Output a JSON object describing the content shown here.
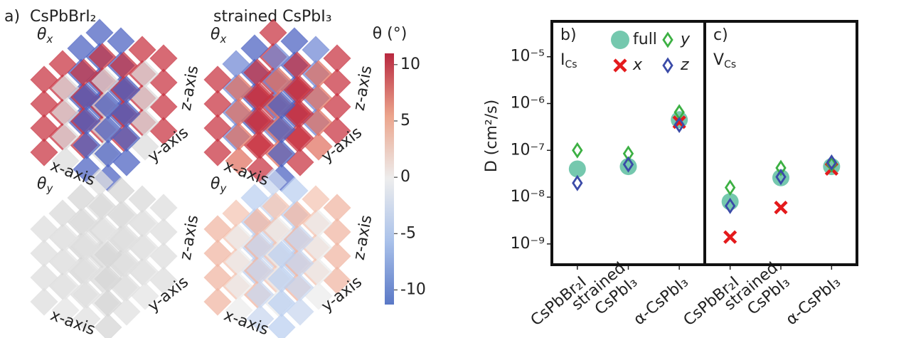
{
  "panel_a": {
    "panel_label": "a)",
    "columns": [
      "CsPbBrI₂",
      "strained CsPbI₃"
    ],
    "rows": [
      {
        "symbol": "θ",
        "sub": "x"
      },
      {
        "symbol": "θ",
        "sub": "y"
      }
    ],
    "axis_labels": [
      "x-axis",
      "y-axis",
      "z-axis"
    ],
    "colorbar": {
      "label": "θ (°)",
      "lim": [
        -11.3,
        11
      ],
      "ticks": [
        -10,
        -5,
        0,
        5,
        10
      ]
    }
  },
  "chart_data": [
    {
      "type": "scatter",
      "panel_label": "b)",
      "defect": "I",
      "defect_sub": "Cs",
      "ylabel": "D (cm²/s)",
      "log_scale": true,
      "legend": "upper right",
      "categories": [
        "CsPbBr₂I",
        "strained CsPbI₃",
        "α-CsPbI₃"
      ],
      "ylim": [
        3.6e-10,
        5.7e-05
      ],
      "yticks": [
        {
          "value": 1e-09,
          "label": "10⁻⁹"
        },
        {
          "value": 1e-08,
          "label": "10⁻⁸"
        },
        {
          "value": 1e-07,
          "label": "10⁻⁷"
        },
        {
          "value": 1e-06,
          "label": "10⁻⁶"
        },
        {
          "value": 1e-05,
          "label": "10⁻⁵"
        }
      ],
      "series": [
        {
          "name": "full",
          "color": "#66c2a5",
          "marker": "circle",
          "values": [
            4e-08,
            4.5e-08,
            4.5e-07
          ]
        },
        {
          "name": "x",
          "color": "#e41a1c",
          "marker": "x",
          "values": [
            null,
            null,
            4e-07
          ]
        },
        {
          "name": "y",
          "color": "#3cb043",
          "marker": "diamond",
          "values": [
            1e-07,
            8.5e-08,
            6.5e-07
          ]
        },
        {
          "name": "z",
          "color": "#3b4ba8",
          "marker": "diamond",
          "values": [
            2e-08,
            5e-08,
            3.5e-07
          ]
        }
      ]
    },
    {
      "type": "scatter",
      "panel_label": "c)",
      "defect": "V",
      "defect_sub": "Cs",
      "log_scale": true,
      "categories": [
        "CsPbBr₂I",
        "strained CsPbI₃",
        "α-CsPbI₃"
      ],
      "ylim": [
        3.6e-10,
        5.7e-05
      ],
      "series": [
        {
          "name": "full",
          "color": "#66c2a5",
          "marker": "circle",
          "values": [
            8e-09,
            2.6e-08,
            4.5e-08
          ]
        },
        {
          "name": "x",
          "color": "#e41a1c",
          "marker": "x",
          "values": [
            1.4e-09,
            6e-09,
            4e-08
          ]
        },
        {
          "name": "y",
          "color": "#3cb043",
          "marker": "diamond",
          "values": [
            1.6e-08,
            4.2e-08,
            5e-08
          ]
        },
        {
          "name": "z",
          "color": "#3b4ba8",
          "marker": "diamond",
          "values": [
            6.5e-09,
            2.7e-08,
            5.5e-08
          ]
        }
      ]
    }
  ]
}
